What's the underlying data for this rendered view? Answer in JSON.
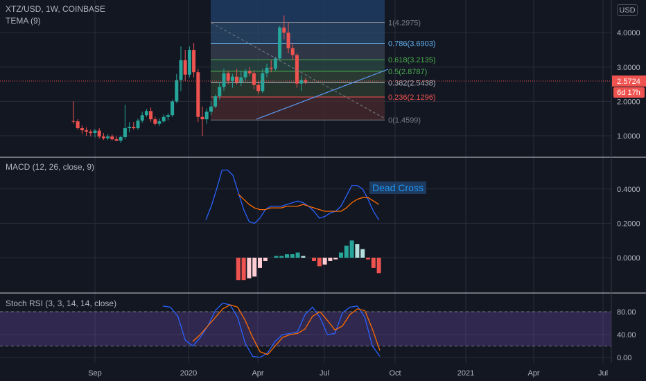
{
  "header": {
    "symbol": "XTZ/USD, 1W, COINBASE",
    "tema": "TEMA (9)",
    "currency_button": "USD"
  },
  "price_badges": {
    "last": "2.5724",
    "countdown": "6d 17h"
  },
  "colors": {
    "background": "#131722",
    "bull": "#26a69a",
    "bear": "#ef5350",
    "macd": "#2962ff",
    "signal": "#ff6d00",
    "stoch_k": "#2962ff",
    "stoch_d": "#ff6d00",
    "stoch_band": "#7e57c2"
  },
  "chart_data": [
    {
      "type": "candlestick",
      "title": "XTZ/USD, 1W, COINBASE",
      "ylim": [
        0.5,
        4.6
      ],
      "y_ticks": [
        "1.0000",
        "2.0000",
        "3.0000",
        "4.0000"
      ],
      "x_ticks": [
        "Sep",
        "2020",
        "Apr",
        "Jul",
        "Oct",
        "2021",
        "Apr",
        "Jul"
      ],
      "candles": [
        {
          "o": 1.43,
          "h": 2.0,
          "l": 1.35,
          "c": 1.42
        },
        {
          "o": 1.42,
          "h": 1.48,
          "l": 1.18,
          "c": 1.22
        },
        {
          "o": 1.22,
          "h": 1.3,
          "l": 1.05,
          "c": 1.16
        },
        {
          "o": 1.16,
          "h": 1.25,
          "l": 1.0,
          "c": 1.12
        },
        {
          "o": 1.12,
          "h": 1.18,
          "l": 0.98,
          "c": 1.08
        },
        {
          "o": 1.08,
          "h": 1.2,
          "l": 0.95,
          "c": 1.15
        },
        {
          "o": 1.15,
          "h": 1.22,
          "l": 0.92,
          "c": 0.98
        },
        {
          "o": 0.98,
          "h": 1.08,
          "l": 0.88,
          "c": 0.93
        },
        {
          "o": 0.93,
          "h": 1.05,
          "l": 0.88,
          "c": 0.98
        },
        {
          "o": 0.98,
          "h": 1.04,
          "l": 0.86,
          "c": 0.9
        },
        {
          "o": 0.9,
          "h": 0.98,
          "l": 0.84,
          "c": 0.86
        },
        {
          "o": 0.86,
          "h": 1.0,
          "l": 0.8,
          "c": 0.96
        },
        {
          "o": 0.96,
          "h": 1.9,
          "l": 0.9,
          "c": 1.22
        },
        {
          "o": 1.22,
          "h": 1.4,
          "l": 1.1,
          "c": 1.26
        },
        {
          "o": 1.26,
          "h": 1.4,
          "l": 1.18,
          "c": 1.22
        },
        {
          "o": 1.22,
          "h": 1.5,
          "l": 1.18,
          "c": 1.44
        },
        {
          "o": 1.44,
          "h": 1.7,
          "l": 1.38,
          "c": 1.6
        },
        {
          "o": 1.6,
          "h": 1.78,
          "l": 1.55,
          "c": 1.72
        },
        {
          "o": 1.72,
          "h": 1.82,
          "l": 1.4,
          "c": 1.48
        },
        {
          "o": 1.48,
          "h": 1.55,
          "l": 1.3,
          "c": 1.35
        },
        {
          "o": 1.35,
          "h": 1.5,
          "l": 1.28,
          "c": 1.42
        },
        {
          "o": 1.42,
          "h": 1.62,
          "l": 1.38,
          "c": 1.55
        },
        {
          "o": 1.55,
          "h": 1.66,
          "l": 1.45,
          "c": 1.6
        },
        {
          "o": 1.6,
          "h": 2.05,
          "l": 1.55,
          "c": 2.0
        },
        {
          "o": 2.0,
          "h": 2.8,
          "l": 1.95,
          "c": 2.62
        },
        {
          "o": 2.62,
          "h": 3.6,
          "l": 2.3,
          "c": 3.2
        },
        {
          "o": 3.2,
          "h": 3.5,
          "l": 2.6,
          "c": 2.78
        },
        {
          "o": 2.78,
          "h": 3.6,
          "l": 2.7,
          "c": 3.5
        },
        {
          "o": 3.5,
          "h": 3.7,
          "l": 2.7,
          "c": 2.85
        },
        {
          "o": 2.85,
          "h": 2.95,
          "l": 1.4,
          "c": 1.55
        },
        {
          "o": 1.55,
          "h": 1.85,
          "l": 1.0,
          "c": 1.48
        },
        {
          "o": 1.48,
          "h": 1.8,
          "l": 1.35,
          "c": 1.7
        },
        {
          "o": 1.7,
          "h": 2.0,
          "l": 1.6,
          "c": 1.85
        },
        {
          "o": 1.85,
          "h": 2.2,
          "l": 1.8,
          "c": 2.15
        },
        {
          "o": 2.15,
          "h": 2.55,
          "l": 2.05,
          "c": 2.42
        },
        {
          "o": 2.42,
          "h": 2.95,
          "l": 2.3,
          "c": 2.82
        },
        {
          "o": 2.82,
          "h": 2.9,
          "l": 2.5,
          "c": 2.6
        },
        {
          "o": 2.6,
          "h": 2.8,
          "l": 2.4,
          "c": 2.72
        },
        {
          "o": 2.72,
          "h": 2.95,
          "l": 2.5,
          "c": 2.55
        },
        {
          "o": 2.55,
          "h": 2.9,
          "l": 2.45,
          "c": 2.7
        },
        {
          "o": 2.7,
          "h": 2.95,
          "l": 2.6,
          "c": 2.88
        },
        {
          "o": 2.88,
          "h": 3.0,
          "l": 2.75,
          "c": 2.82
        },
        {
          "o": 2.82,
          "h": 2.9,
          "l": 2.35,
          "c": 2.48
        },
        {
          "o": 2.48,
          "h": 2.6,
          "l": 2.2,
          "c": 2.3
        },
        {
          "o": 2.3,
          "h": 2.95,
          "l": 2.25,
          "c": 2.82
        },
        {
          "o": 2.82,
          "h": 3.1,
          "l": 2.7,
          "c": 2.98
        },
        {
          "o": 2.98,
          "h": 3.2,
          "l": 2.85,
          "c": 2.95
        },
        {
          "o": 2.95,
          "h": 3.3,
          "l": 2.9,
          "c": 3.25
        },
        {
          "o": 3.25,
          "h": 4.2,
          "l": 3.2,
          "c": 4.15
        },
        {
          "o": 4.15,
          "h": 4.5,
          "l": 3.8,
          "c": 4.0
        },
        {
          "o": 4.0,
          "h": 4.3,
          "l": 3.4,
          "c": 3.55
        },
        {
          "o": 3.55,
          "h": 3.7,
          "l": 3.2,
          "c": 3.35
        },
        {
          "o": 3.35,
          "h": 3.4,
          "l": 2.4,
          "c": 2.52
        },
        {
          "o": 2.52,
          "h": 2.75,
          "l": 2.3,
          "c": 2.62
        },
        {
          "o": 2.62,
          "h": 2.68,
          "l": 2.5,
          "c": 2.57
        }
      ],
      "fibonacci": [
        {
          "level": "1",
          "value": "4.2975",
          "color": "#787b86"
        },
        {
          "level": "0.786",
          "value": "3.6903",
          "color": "#64b5f6"
        },
        {
          "level": "0.618",
          "value": "3.2135",
          "color": "#4caf50"
        },
        {
          "level": "0.5",
          "value": "2.8787",
          "color": "#4caf50"
        },
        {
          "level": "0.382",
          "value": "2.5438",
          "color": "#b2b5be"
        },
        {
          "level": "0.236",
          "value": "2.1296",
          "color": "#ef5350"
        },
        {
          "level": "0",
          "value": "1.4599",
          "color": "#787b86"
        }
      ]
    },
    {
      "type": "line",
      "title": "MACD (12, 26, close, 9)",
      "ylim": [
        -0.15,
        0.55
      ],
      "y_ticks": [
        "0.0000",
        "0.2000",
        "0.4000"
      ],
      "annotation": "Dead Cross",
      "macd": [
        0.22,
        0.3,
        0.4,
        0.51,
        0.51,
        0.48,
        0.38,
        0.28,
        0.21,
        0.2,
        0.23,
        0.28,
        0.3,
        0.3,
        0.3,
        0.31,
        0.32,
        0.33,
        0.32,
        0.3,
        0.27,
        0.23,
        0.24,
        0.26,
        0.27,
        0.3,
        0.36,
        0.42,
        0.42,
        0.4,
        0.34,
        0.27,
        0.22
      ],
      "signal": [
        null,
        null,
        null,
        null,
        null,
        null,
        0.37,
        0.34,
        0.31,
        0.29,
        0.28,
        0.28,
        0.29,
        0.29,
        0.29,
        0.3,
        0.3,
        0.3,
        0.31,
        0.3,
        0.29,
        0.28,
        0.27,
        0.27,
        0.27,
        0.27,
        0.29,
        0.32,
        0.34,
        0.35,
        0.35,
        0.33,
        0.31
      ],
      "histogram": [
        0,
        0,
        0,
        0,
        0,
        0,
        -0.13,
        -0.13,
        -0.12,
        -0.11,
        -0.06,
        -0.02,
        0.0,
        0.01,
        0.01,
        0.02,
        0.02,
        0.03,
        0.01,
        0,
        -0.02,
        -0.05,
        -0.04,
        -0.02,
        -0.01,
        0.03,
        0.07,
        0.1,
        0.08,
        0.05,
        -0.01,
        -0.06,
        -0.09
      ]
    },
    {
      "type": "line",
      "title": "Stoch RSI (3, 3, 14, 14, close)",
      "ylim": [
        -5,
        100
      ],
      "y_ticks": [
        "0.00",
        "40.00",
        "80.00"
      ],
      "band": [
        20,
        80
      ],
      "k": [
        90,
        88,
        72,
        30,
        20,
        35,
        55,
        82,
        95,
        92,
        70,
        25,
        2,
        0,
        8,
        28,
        40,
        42,
        45,
        75,
        88,
        70,
        40,
        42,
        78,
        88,
        90,
        70,
        20,
        2
      ],
      "d": [
        null,
        null,
        null,
        null,
        28,
        40,
        55,
        70,
        85,
        92,
        88,
        65,
        35,
        10,
        5,
        20,
        35,
        40,
        42,
        50,
        72,
        80,
        65,
        48,
        55,
        75,
        85,
        82,
        50,
        12
      ]
    }
  ]
}
